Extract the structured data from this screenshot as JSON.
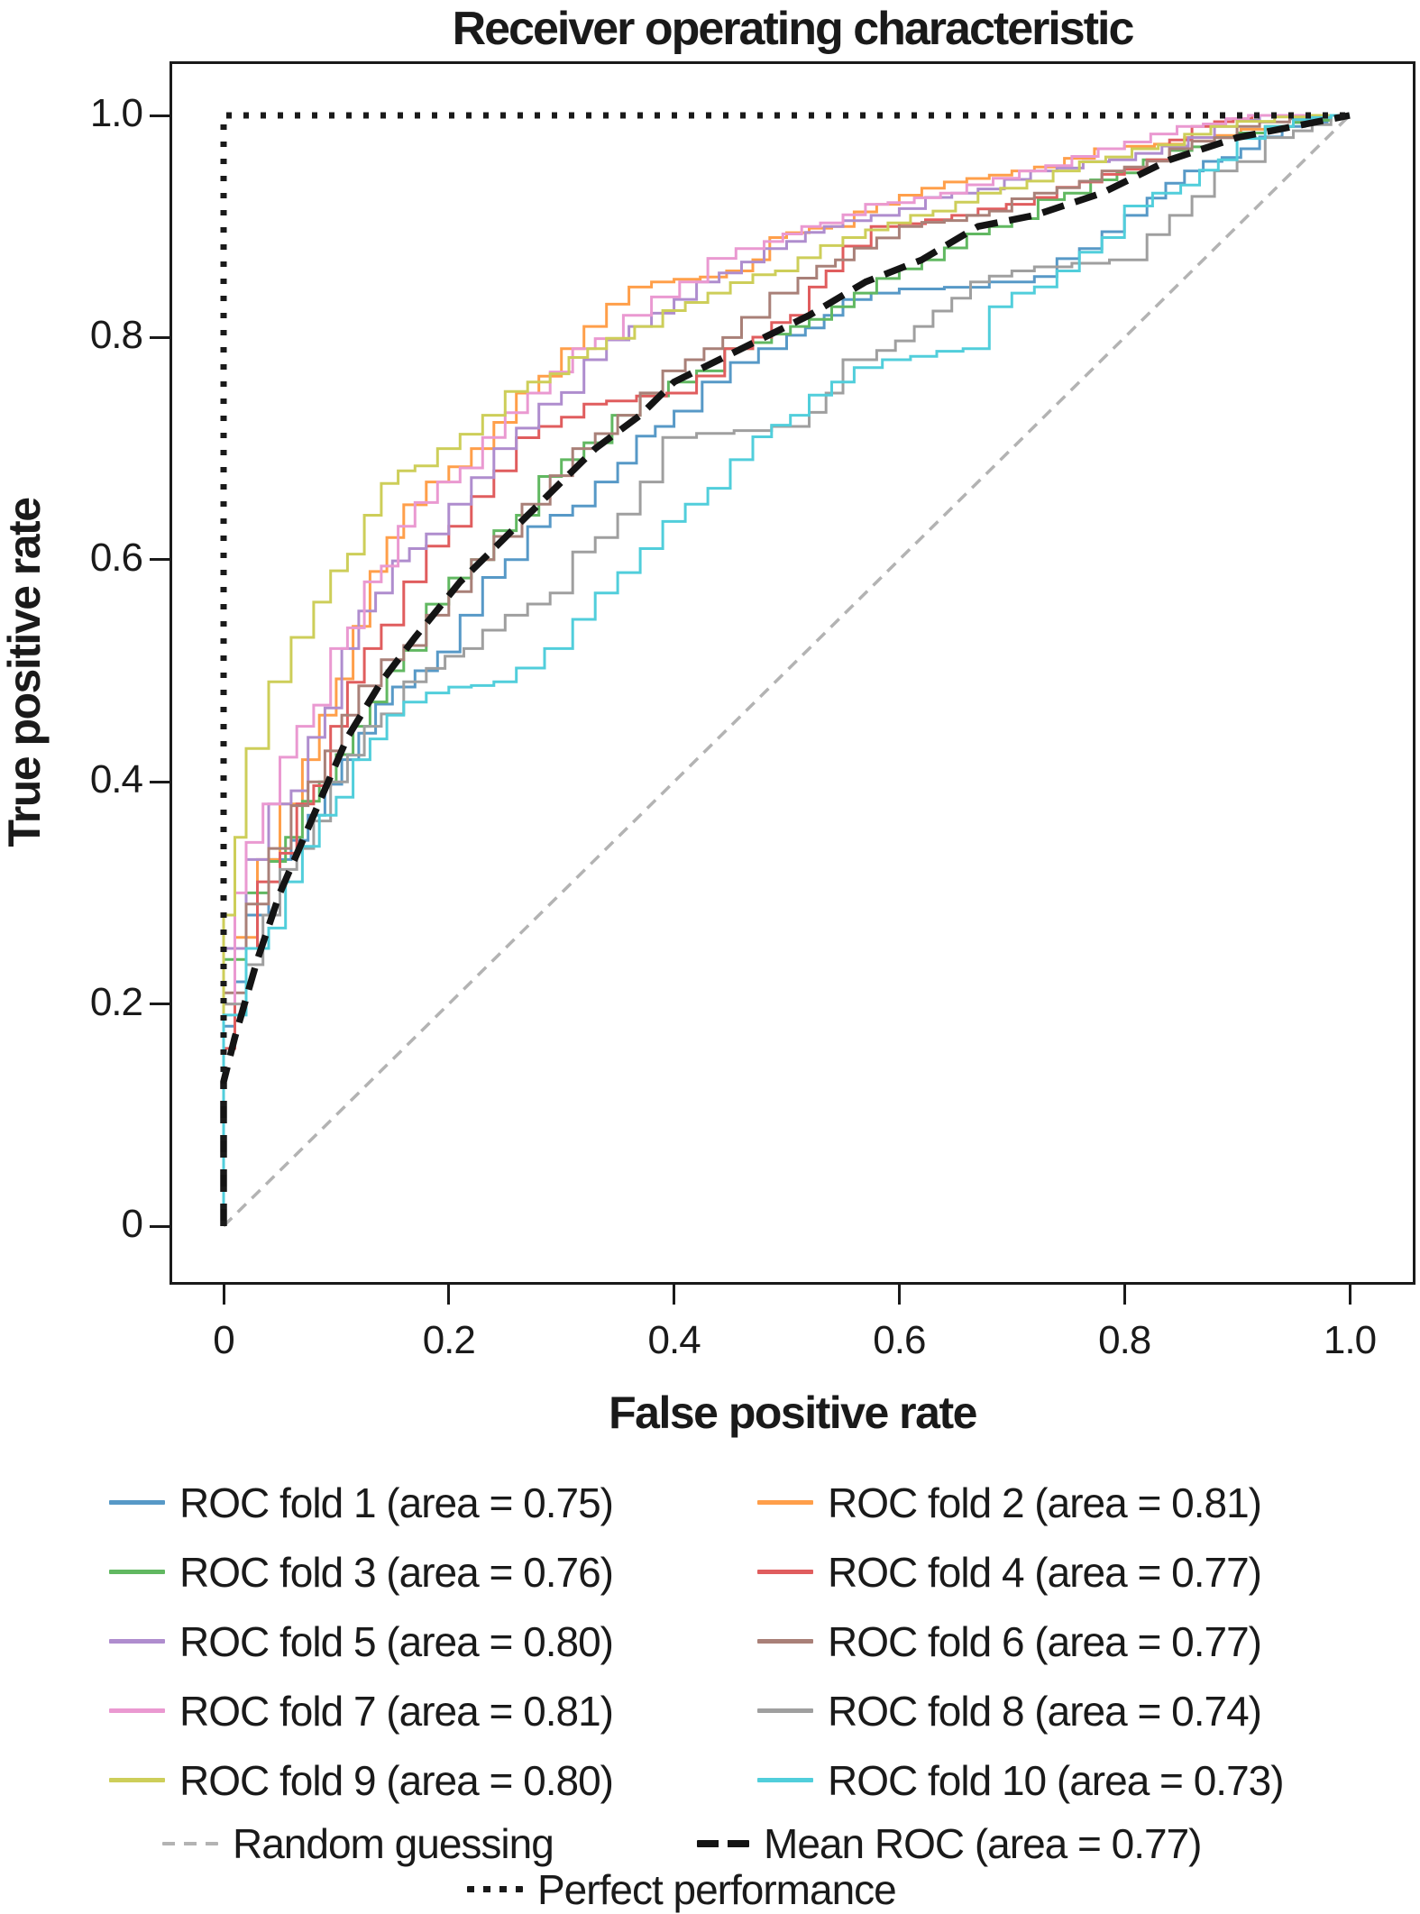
{
  "chart_data": {
    "type": "line",
    "subtype": "roc-curves",
    "title": "Receiver operating characteristic",
    "xlabel": "False positive rate",
    "ylabel": "True positive rate",
    "xlim": [
      -0.05,
      1.05
    ],
    "ylim": [
      -0.05,
      1.05
    ],
    "grid": false,
    "legend_position": "below-two-columns",
    "x_ticks": [
      0,
      0.2,
      0.4,
      0.6,
      0.8,
      1.0
    ],
    "x_tick_labels": [
      "0",
      "0.2",
      "0.4",
      "0.6",
      "0.8",
      "1.0"
    ],
    "y_ticks": [
      0,
      0.2,
      0.4,
      0.6,
      0.8,
      1.0
    ],
    "y_tick_labels": [
      "0",
      "0.2",
      "0.4",
      "0.6",
      "0.8",
      "1.0"
    ],
    "frame_color": "#1a1a1a",
    "series": [
      {
        "name": "ROC fold 1 (area = 0.75)",
        "area": 0.75,
        "color": "#5799C7",
        "line_style": "solid",
        "points": [
          [
            0,
            0
          ],
          [
            0,
            0.12
          ],
          [
            0.01,
            0.18
          ],
          [
            0.02,
            0.22
          ],
          [
            0.04,
            0.28
          ],
          [
            0.06,
            0.33
          ],
          [
            0.09,
            0.37
          ],
          [
            0.12,
            0.42
          ],
          [
            0.15,
            0.47
          ],
          [
            0.19,
            0.5
          ],
          [
            0.23,
            0.55
          ],
          [
            0.27,
            0.6
          ],
          [
            0.31,
            0.64
          ],
          [
            0.35,
            0.67
          ],
          [
            0.4,
            0.72
          ],
          [
            0.45,
            0.76
          ],
          [
            0.5,
            0.79
          ],
          [
            0.55,
            0.82
          ],
          [
            0.6,
            0.84
          ],
          [
            0.72,
            0.85
          ],
          [
            0.78,
            0.88
          ],
          [
            0.82,
            0.91
          ],
          [
            0.87,
            0.95
          ],
          [
            0.92,
            0.97
          ],
          [
            0.96,
            0.99
          ],
          [
            1,
            1
          ]
        ]
      },
      {
        "name": "ROC fold 2 (area = 0.81)",
        "area": 0.81,
        "color": "#FF9F4A",
        "line_style": "solid",
        "points": [
          [
            0,
            0
          ],
          [
            0,
            0.14
          ],
          [
            0.01,
            0.2
          ],
          [
            0.03,
            0.26
          ],
          [
            0.05,
            0.33
          ],
          [
            0.07,
            0.38
          ],
          [
            0.1,
            0.46
          ],
          [
            0.13,
            0.54
          ],
          [
            0.16,
            0.62
          ],
          [
            0.2,
            0.67
          ],
          [
            0.24,
            0.7
          ],
          [
            0.28,
            0.75
          ],
          [
            0.32,
            0.79
          ],
          [
            0.36,
            0.83
          ],
          [
            0.4,
            0.85
          ],
          [
            0.47,
            0.86
          ],
          [
            0.5,
            0.89
          ],
          [
            0.56,
            0.9
          ],
          [
            0.6,
            0.92
          ],
          [
            0.66,
            0.94
          ],
          [
            0.72,
            0.95
          ],
          [
            0.8,
            0.97
          ],
          [
            0.88,
            0.98
          ],
          [
            0.95,
            0.99
          ],
          [
            1,
            1
          ]
        ]
      },
      {
        "name": "ROC fold 3 (area = 0.76)",
        "area": 0.76,
        "color": "#61B861",
        "line_style": "solid",
        "points": [
          [
            0,
            0
          ],
          [
            0,
            0.16
          ],
          [
            0.02,
            0.24
          ],
          [
            0.04,
            0.3
          ],
          [
            0.07,
            0.35
          ],
          [
            0.1,
            0.4
          ],
          [
            0.13,
            0.45
          ],
          [
            0.16,
            0.5
          ],
          [
            0.2,
            0.56
          ],
          [
            0.24,
            0.6
          ],
          [
            0.28,
            0.64
          ],
          [
            0.32,
            0.69
          ],
          [
            0.37,
            0.73
          ],
          [
            0.42,
            0.76
          ],
          [
            0.47,
            0.79
          ],
          [
            0.52,
            0.81
          ],
          [
            0.58,
            0.84
          ],
          [
            0.64,
            0.87
          ],
          [
            0.7,
            0.9
          ],
          [
            0.77,
            0.93
          ],
          [
            0.84,
            0.96
          ],
          [
            0.9,
            0.98
          ],
          [
            0.95,
            0.99
          ],
          [
            1,
            1
          ]
        ]
      },
      {
        "name": "ROC fold 4 (area = 0.77)",
        "area": 0.77,
        "color": "#E05D5E",
        "line_style": "solid",
        "points": [
          [
            0,
            0
          ],
          [
            0,
            0.12
          ],
          [
            0.01,
            0.16
          ],
          [
            0.03,
            0.25
          ],
          [
            0.05,
            0.31
          ],
          [
            0.08,
            0.38
          ],
          [
            0.11,
            0.45
          ],
          [
            0.14,
            0.52
          ],
          [
            0.18,
            0.58
          ],
          [
            0.22,
            0.63
          ],
          [
            0.26,
            0.68
          ],
          [
            0.3,
            0.72
          ],
          [
            0.34,
            0.74
          ],
          [
            0.42,
            0.75
          ],
          [
            0.47,
            0.79
          ],
          [
            0.52,
            0.82
          ],
          [
            0.55,
            0.86
          ],
          [
            0.6,
            0.9
          ],
          [
            0.67,
            0.91
          ],
          [
            0.72,
            0.92
          ],
          [
            0.78,
            0.94
          ],
          [
            0.84,
            0.96
          ],
          [
            0.88,
            0.99
          ],
          [
            0.93,
            1
          ],
          [
            1,
            1
          ]
        ]
      },
      {
        "name": "ROC fold 5 (area = 0.80)",
        "area": 0.8,
        "color": "#AF8DCE",
        "line_style": "solid",
        "points": [
          [
            0,
            0
          ],
          [
            0,
            0.15
          ],
          [
            0.02,
            0.25
          ],
          [
            0.04,
            0.33
          ],
          [
            0.06,
            0.38
          ],
          [
            0.09,
            0.44
          ],
          [
            0.12,
            0.52
          ],
          [
            0.15,
            0.57
          ],
          [
            0.18,
            0.61
          ],
          [
            0.22,
            0.65
          ],
          [
            0.26,
            0.7
          ],
          [
            0.3,
            0.74
          ],
          [
            0.34,
            0.78
          ],
          [
            0.38,
            0.81
          ],
          [
            0.44,
            0.85
          ],
          [
            0.5,
            0.88
          ],
          [
            0.55,
            0.9
          ],
          [
            0.6,
            0.91
          ],
          [
            0.67,
            0.93
          ],
          [
            0.74,
            0.95
          ],
          [
            0.81,
            0.96
          ],
          [
            0.88,
            0.98
          ],
          [
            0.94,
            1
          ],
          [
            1,
            1
          ]
        ]
      },
      {
        "name": "ROC fold 6 (area = 0.77)",
        "area": 0.77,
        "color": "#A98078",
        "line_style": "solid",
        "points": [
          [
            0,
            0
          ],
          [
            0,
            0.13
          ],
          [
            0.02,
            0.21
          ],
          [
            0.04,
            0.29
          ],
          [
            0.06,
            0.34
          ],
          [
            0.09,
            0.4
          ],
          [
            0.12,
            0.46
          ],
          [
            0.16,
            0.51
          ],
          [
            0.2,
            0.55
          ],
          [
            0.24,
            0.6
          ],
          [
            0.29,
            0.65
          ],
          [
            0.33,
            0.7
          ],
          [
            0.37,
            0.73
          ],
          [
            0.41,
            0.77
          ],
          [
            0.46,
            0.8
          ],
          [
            0.51,
            0.84
          ],
          [
            0.56,
            0.87
          ],
          [
            0.62,
            0.9
          ],
          [
            0.68,
            0.91
          ],
          [
            0.74,
            0.93
          ],
          [
            0.8,
            0.95
          ],
          [
            0.86,
            0.97
          ],
          [
            0.92,
            0.99
          ],
          [
            1,
            1
          ]
        ]
      },
      {
        "name": "ROC fold 7 (area = 0.81)",
        "area": 0.81,
        "color": "#EA99D1",
        "line_style": "solid",
        "points": [
          [
            0,
            0
          ],
          [
            0,
            0.1
          ],
          [
            0.01,
            0.2
          ],
          [
            0.02,
            0.3
          ],
          [
            0.05,
            0.38
          ],
          [
            0.08,
            0.45
          ],
          [
            0.11,
            0.52
          ],
          [
            0.14,
            0.58
          ],
          [
            0.17,
            0.63
          ],
          [
            0.21,
            0.67
          ],
          [
            0.25,
            0.71
          ],
          [
            0.29,
            0.75
          ],
          [
            0.33,
            0.79
          ],
          [
            0.38,
            0.82
          ],
          [
            0.43,
            0.85
          ],
          [
            0.48,
            0.88
          ],
          [
            0.53,
            0.9
          ],
          [
            0.59,
            0.92
          ],
          [
            0.66,
            0.93
          ],
          [
            0.73,
            0.95
          ],
          [
            0.8,
            0.97
          ],
          [
            0.87,
            0.99
          ],
          [
            0.93,
            1
          ],
          [
            1,
            1
          ]
        ]
      },
      {
        "name": "ROC fold 8 (area = 0.74)",
        "area": 0.74,
        "color": "#9F9F9F",
        "line_style": "solid",
        "points": [
          [
            0,
            0
          ],
          [
            0,
            0.14
          ],
          [
            0.02,
            0.2
          ],
          [
            0.05,
            0.28
          ],
          [
            0.08,
            0.34
          ],
          [
            0.11,
            0.4
          ],
          [
            0.14,
            0.45
          ],
          [
            0.18,
            0.49
          ],
          [
            0.23,
            0.52
          ],
          [
            0.27,
            0.55
          ],
          [
            0.31,
            0.57
          ],
          [
            0.35,
            0.62
          ],
          [
            0.39,
            0.67
          ],
          [
            0.42,
            0.71
          ],
          [
            0.52,
            0.72
          ],
          [
            0.55,
            0.75
          ],
          [
            0.58,
            0.78
          ],
          [
            0.63,
            0.81
          ],
          [
            0.68,
            0.85
          ],
          [
            0.72,
            0.86
          ],
          [
            0.82,
            0.87
          ],
          [
            0.86,
            0.91
          ],
          [
            0.9,
            0.95
          ],
          [
            0.95,
            0.98
          ],
          [
            1,
            1
          ]
        ]
      },
      {
        "name": "ROC fold 9 (area = 0.80)",
        "area": 0.8,
        "color": "#CDCE59",
        "line_style": "solid",
        "points": [
          [
            0,
            0
          ],
          [
            0,
            0.18
          ],
          [
            0.01,
            0.28
          ],
          [
            0.02,
            0.35
          ],
          [
            0.04,
            0.43
          ],
          [
            0.06,
            0.49
          ],
          [
            0.08,
            0.53
          ],
          [
            0.11,
            0.59
          ],
          [
            0.14,
            0.64
          ],
          [
            0.17,
            0.68
          ],
          [
            0.21,
            0.7
          ],
          [
            0.25,
            0.73
          ],
          [
            0.29,
            0.76
          ],
          [
            0.34,
            0.79
          ],
          [
            0.39,
            0.81
          ],
          [
            0.45,
            0.84
          ],
          [
            0.51,
            0.86
          ],
          [
            0.57,
            0.89
          ],
          [
            0.63,
            0.91
          ],
          [
            0.69,
            0.93
          ],
          [
            0.76,
            0.95
          ],
          [
            0.83,
            0.97
          ],
          [
            0.9,
            0.99
          ],
          [
            1,
            1
          ]
        ]
      },
      {
        "name": "ROC fold 10 (area = 0.73)",
        "area": 0.73,
        "color": "#51CEDB",
        "line_style": "solid",
        "points": [
          [
            0,
            0
          ],
          [
            0,
            0.11
          ],
          [
            0.02,
            0.19
          ],
          [
            0.04,
            0.25
          ],
          [
            0.07,
            0.31
          ],
          [
            0.1,
            0.37
          ],
          [
            0.13,
            0.42
          ],
          [
            0.16,
            0.46
          ],
          [
            0.2,
            0.48
          ],
          [
            0.26,
            0.49
          ],
          [
            0.31,
            0.52
          ],
          [
            0.35,
            0.57
          ],
          [
            0.39,
            0.61
          ],
          [
            0.43,
            0.65
          ],
          [
            0.47,
            0.69
          ],
          [
            0.52,
            0.73
          ],
          [
            0.56,
            0.76
          ],
          [
            0.61,
            0.78
          ],
          [
            0.68,
            0.79
          ],
          [
            0.72,
            0.84
          ],
          [
            0.76,
            0.86
          ],
          [
            0.8,
            0.89
          ],
          [
            0.85,
            0.93
          ],
          [
            0.9,
            0.96
          ],
          [
            0.95,
            0.99
          ],
          [
            1,
            1
          ]
        ]
      }
    ],
    "random_guessing": {
      "name": "Random guessing",
      "color": "#b3b3b3",
      "line_style": "dashed",
      "points": [
        [
          0,
          0
        ],
        [
          1,
          1
        ]
      ]
    },
    "mean_roc": {
      "name": "Mean ROC (area = 0.77)",
      "area": 0.77,
      "color": "#141414",
      "line_style": "dashed-bold",
      "points": [
        [
          0,
          0
        ],
        [
          0,
          0.13
        ],
        [
          0.01,
          0.17
        ],
        [
          0.03,
          0.24
        ],
        [
          0.05,
          0.3
        ],
        [
          0.08,
          0.37
        ],
        [
          0.11,
          0.44
        ],
        [
          0.14,
          0.49
        ],
        [
          0.17,
          0.53
        ],
        [
          0.21,
          0.58
        ],
        [
          0.25,
          0.62
        ],
        [
          0.29,
          0.66
        ],
        [
          0.33,
          0.7
        ],
        [
          0.37,
          0.73
        ],
        [
          0.4,
          0.76
        ],
        [
          0.44,
          0.78
        ],
        [
          0.48,
          0.8
        ],
        [
          0.52,
          0.82
        ],
        [
          0.57,
          0.85
        ],
        [
          0.62,
          0.87
        ],
        [
          0.67,
          0.9
        ],
        [
          0.72,
          0.91
        ],
        [
          0.78,
          0.93
        ],
        [
          0.84,
          0.96
        ],
        [
          0.9,
          0.98
        ],
        [
          0.95,
          0.99
        ],
        [
          1,
          1
        ]
      ]
    },
    "perfect_performance": {
      "name": "Perfect performance",
      "color": "#1a1a1a",
      "line_style": "dotted",
      "points": [
        [
          0,
          0
        ],
        [
          0,
          1
        ],
        [
          1,
          1
        ]
      ]
    }
  }
}
